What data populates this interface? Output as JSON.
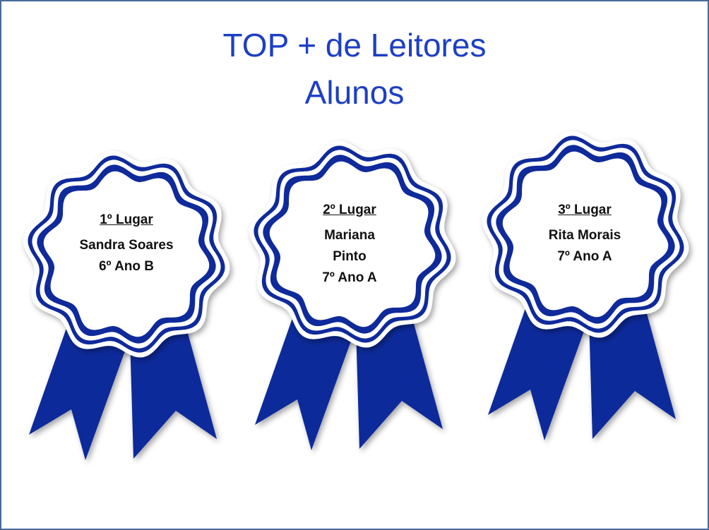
{
  "slide": {
    "title_line1": "TOP + de Leitores",
    "title_line2": "Alunos",
    "accent_color": "#1d3fc4",
    "ribbon_color": "#0f2a9a"
  },
  "awards": [
    {
      "place": "1º Lugar",
      "lines": [
        "Sandra Soares",
        "6º Ano B"
      ]
    },
    {
      "place": "2º Lugar",
      "lines": [
        "Mariana",
        "Pinto",
        "7º Ano A"
      ]
    },
    {
      "place": "3º Lugar",
      "lines": [
        "Rita Morais",
        "7º Ano A"
      ]
    }
  ]
}
